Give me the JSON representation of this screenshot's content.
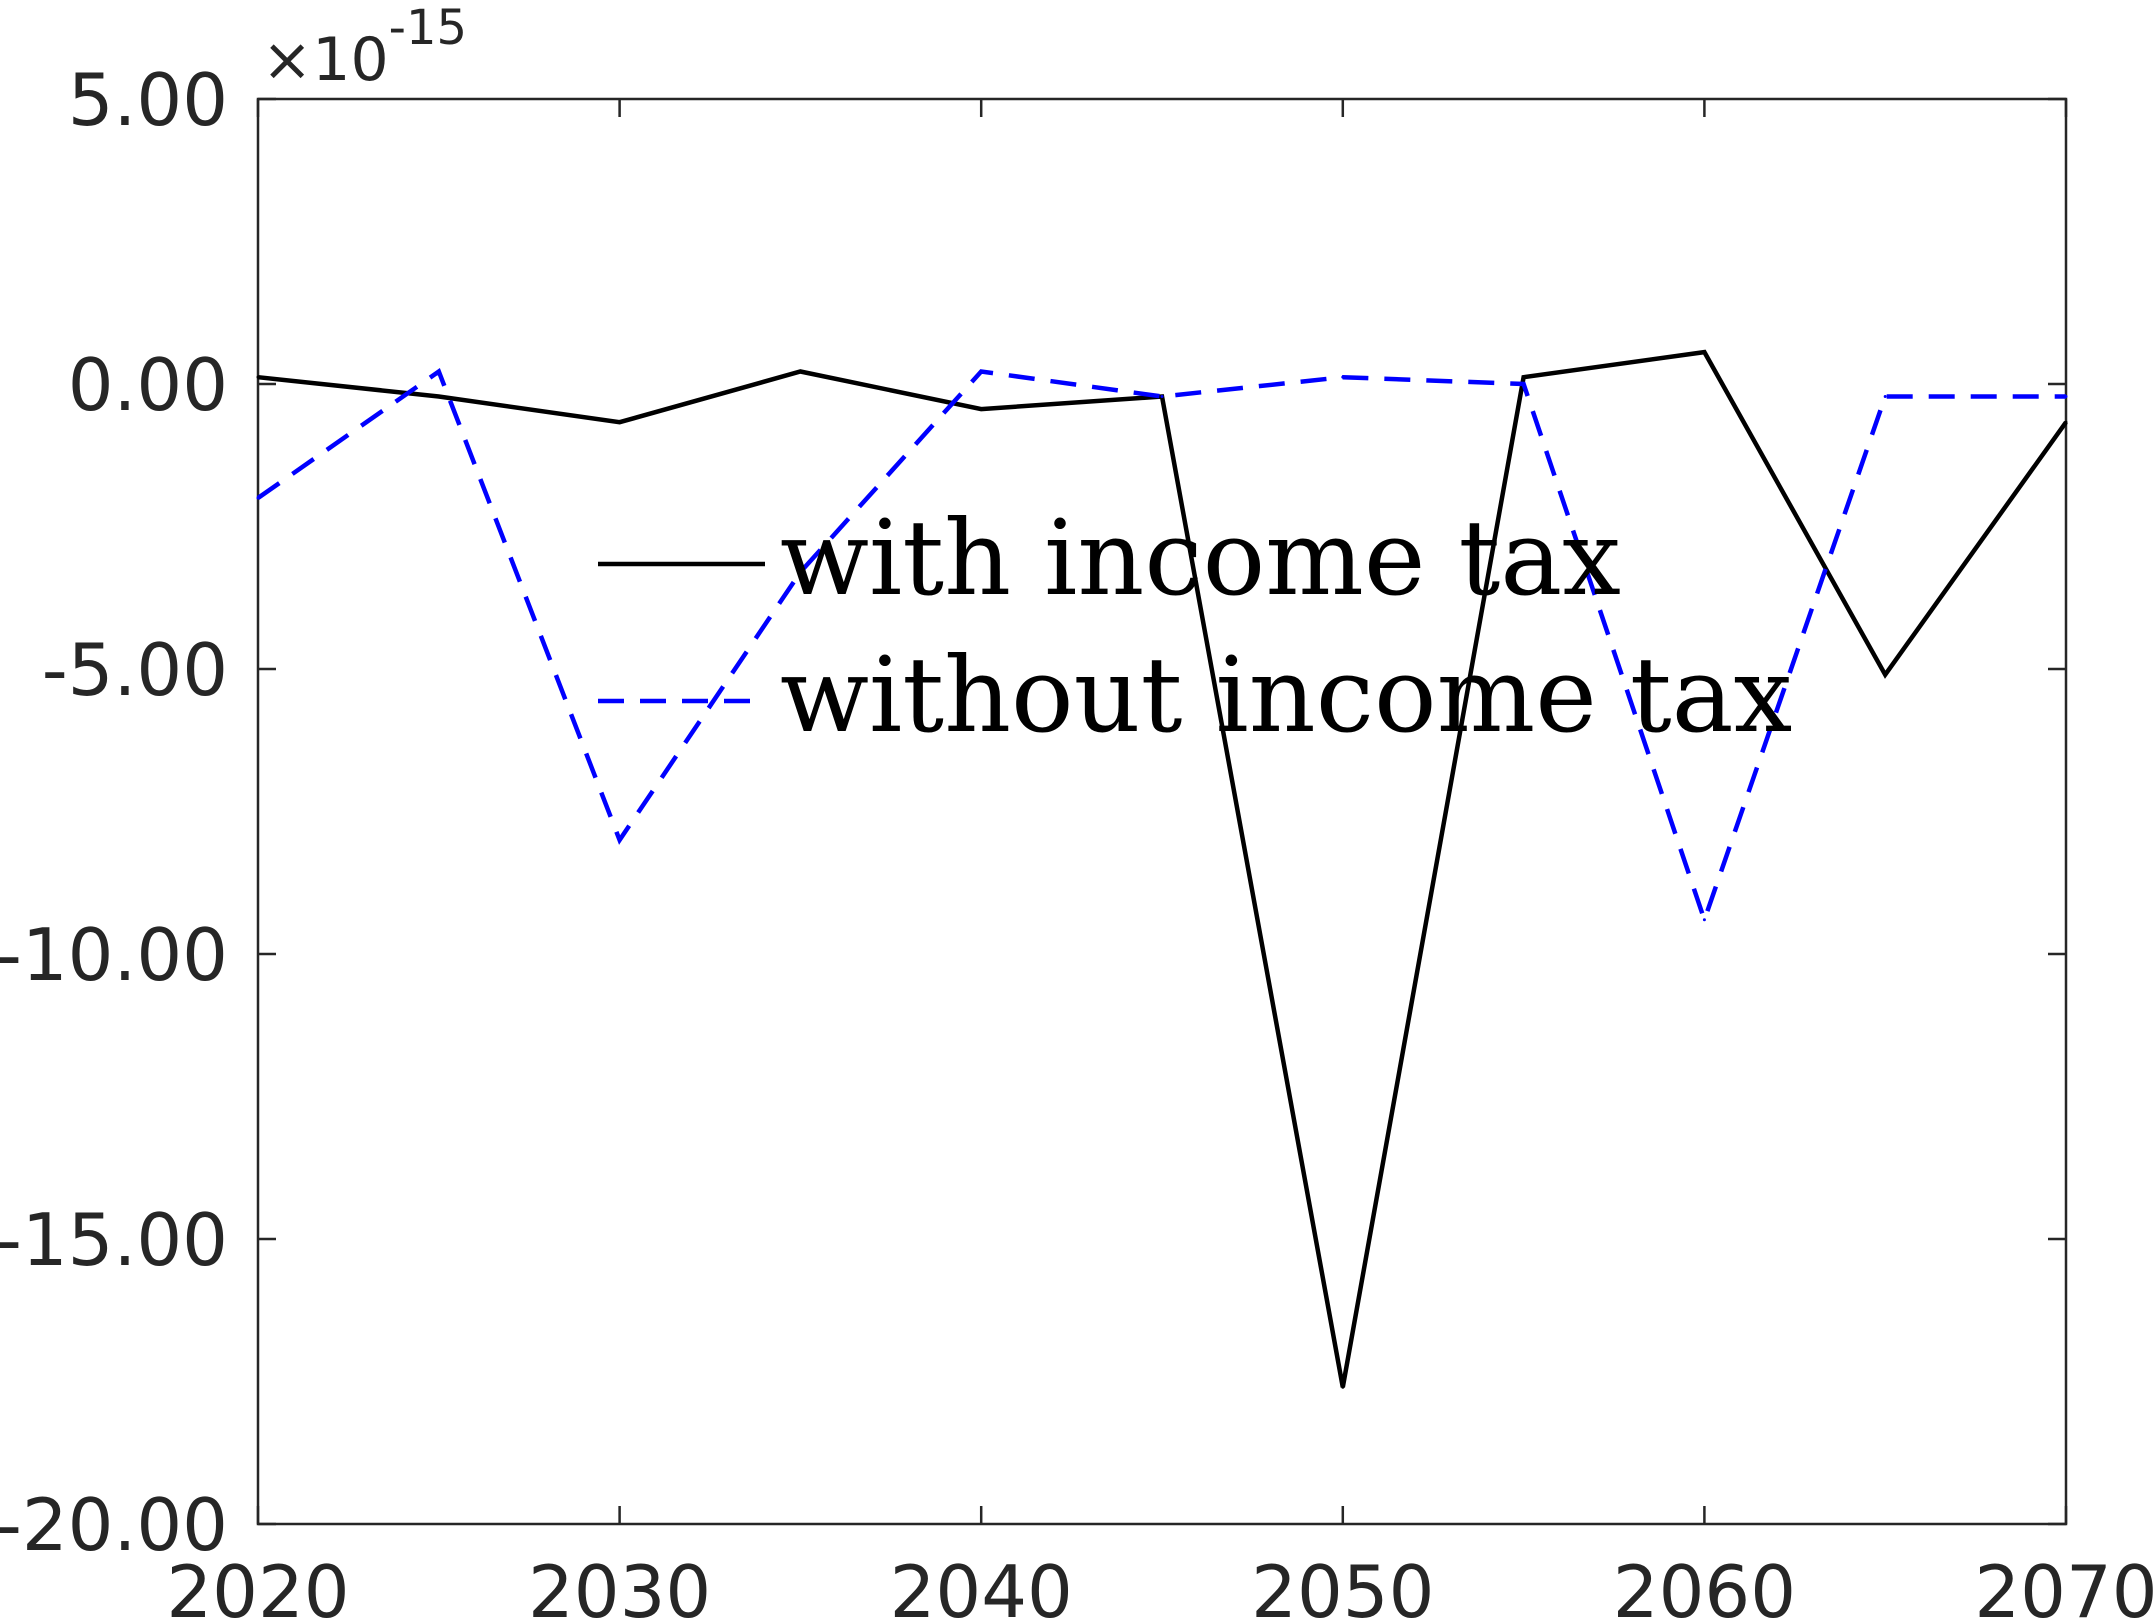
{
  "chart_data": {
    "type": "line",
    "title": "",
    "xlabel": "",
    "ylabel": "",
    "y_exponent_label": "×10",
    "y_exponent_power": "-15",
    "xlim": [
      2020,
      2070
    ],
    "ylim": [
      -20,
      5
    ],
    "y_scale_factor": 1e-15,
    "xticks": [
      2020,
      2030,
      2040,
      2050,
      2060,
      2070
    ],
    "xtick_labels": [
      "2020",
      "2030",
      "2040",
      "2050",
      "2060",
      "2070"
    ],
    "yticks": [
      5,
      0,
      -5,
      -10,
      -15,
      -20
    ],
    "ytick_labels": [
      "5.00",
      "0.00",
      "-5.00",
      "-10.00",
      "-15.00",
      "-20.00"
    ],
    "grid": false,
    "legend": "center",
    "x": [
      2020,
      2025,
      2030,
      2035,
      2040,
      2045,
      2050,
      2055,
      2060,
      2065,
      2070
    ],
    "series": [
      {
        "name": "with income tax",
        "color": "#000000",
        "style": "solid",
        "values": [
          0.12,
          -0.22,
          -0.67,
          0.22,
          -0.44,
          -0.22,
          -17.6,
          0.12,
          0.56,
          -5.1,
          -0.67
        ]
      },
      {
        "name": "without income tax",
        "color": "#0000ff",
        "style": "dashed",
        "values": [
          -2.0,
          0.22,
          -8.0,
          -3.3,
          0.22,
          -0.22,
          0.12,
          0.0,
          -9.4,
          -0.22,
          -0.22
        ]
      }
    ]
  }
}
